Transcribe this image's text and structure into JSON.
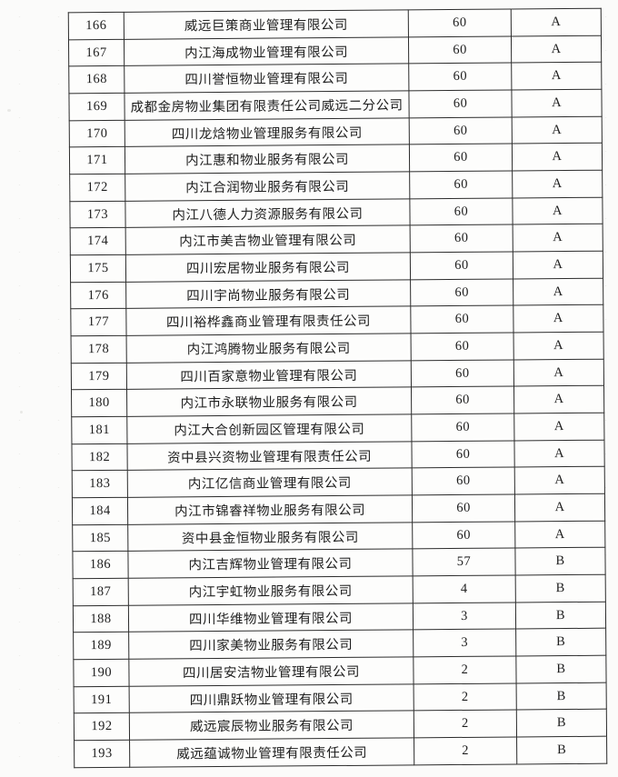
{
  "table": {
    "columns": [
      "index",
      "name",
      "score",
      "grade"
    ],
    "rows": [
      {
        "index": "166",
        "name": "威远巨策商业管理有限公司",
        "score": "60",
        "grade": "A"
      },
      {
        "index": "167",
        "name": "内江海成物业管理有限公司",
        "score": "60",
        "grade": "A"
      },
      {
        "index": "168",
        "name": "四川誉恒物业管理有限公司",
        "score": "60",
        "grade": "A"
      },
      {
        "index": "169",
        "name": "成都金房物业集团有限责任公司威远二分公司",
        "score": "60",
        "grade": "A"
      },
      {
        "index": "170",
        "name": "四川龙焓物业管理服务有限公司",
        "score": "60",
        "grade": "A"
      },
      {
        "index": "171",
        "name": "内江惠和物业服务有限公司",
        "score": "60",
        "grade": "A"
      },
      {
        "index": "172",
        "name": "内江合润物业服务有限公司",
        "score": "60",
        "grade": "A"
      },
      {
        "index": "173",
        "name": "内江八德人力资源服务有限公司",
        "score": "60",
        "grade": "A"
      },
      {
        "index": "174",
        "name": "内江市美吉物业管理有限公司",
        "score": "60",
        "grade": "A"
      },
      {
        "index": "175",
        "name": "四川宏居物业服务有限公司",
        "score": "60",
        "grade": "A"
      },
      {
        "index": "176",
        "name": "四川宇尚物业服务有限公司",
        "score": "60",
        "grade": "A"
      },
      {
        "index": "177",
        "name": "四川裕桦鑫商业管理有限责任公司",
        "score": "60",
        "grade": "A"
      },
      {
        "index": "178",
        "name": "内江鸿腾物业服务有限公司",
        "score": "60",
        "grade": "A"
      },
      {
        "index": "179",
        "name": "四川百家意物业管理有限公司",
        "score": "60",
        "grade": "A"
      },
      {
        "index": "180",
        "name": "内江市永联物业服务有限公司",
        "score": "60",
        "grade": "A"
      },
      {
        "index": "181",
        "name": "内江大合创新园区管理有限公司",
        "score": "60",
        "grade": "A"
      },
      {
        "index": "182",
        "name": "资中县兴资物业管理有限责任公司",
        "score": "60",
        "grade": "A"
      },
      {
        "index": "183",
        "name": "内江亿信商业管理有限公司",
        "score": "60",
        "grade": "A"
      },
      {
        "index": "184",
        "name": "内江市锦睿祥物业服务有限公司",
        "score": "60",
        "grade": "A"
      },
      {
        "index": "185",
        "name": "资中县金恒物业服务有限公司",
        "score": "60",
        "grade": "A"
      },
      {
        "index": "186",
        "name": "内江吉辉物业管理有限公司",
        "score": "57",
        "grade": "B"
      },
      {
        "index": "187",
        "name": "内江宇虹物业服务有限公司",
        "score": "4",
        "grade": "B"
      },
      {
        "index": "188",
        "name": "四川华维物业管理有限公司",
        "score": "3",
        "grade": "B"
      },
      {
        "index": "189",
        "name": "四川家美物业服务有限公司",
        "score": "3",
        "grade": "B"
      },
      {
        "index": "190",
        "name": "四川居安洁物业管理有限公司",
        "score": "2",
        "grade": "B"
      },
      {
        "index": "191",
        "name": "四川鼎跃物业管理有限公司",
        "score": "2",
        "grade": "B"
      },
      {
        "index": "192",
        "name": "威远宸辰物业服务有限公司",
        "score": "2",
        "grade": "B"
      },
      {
        "index": "193",
        "name": "威远蕴诚物业管理有限责任公司",
        "score": "2",
        "grade": "B"
      }
    ]
  }
}
